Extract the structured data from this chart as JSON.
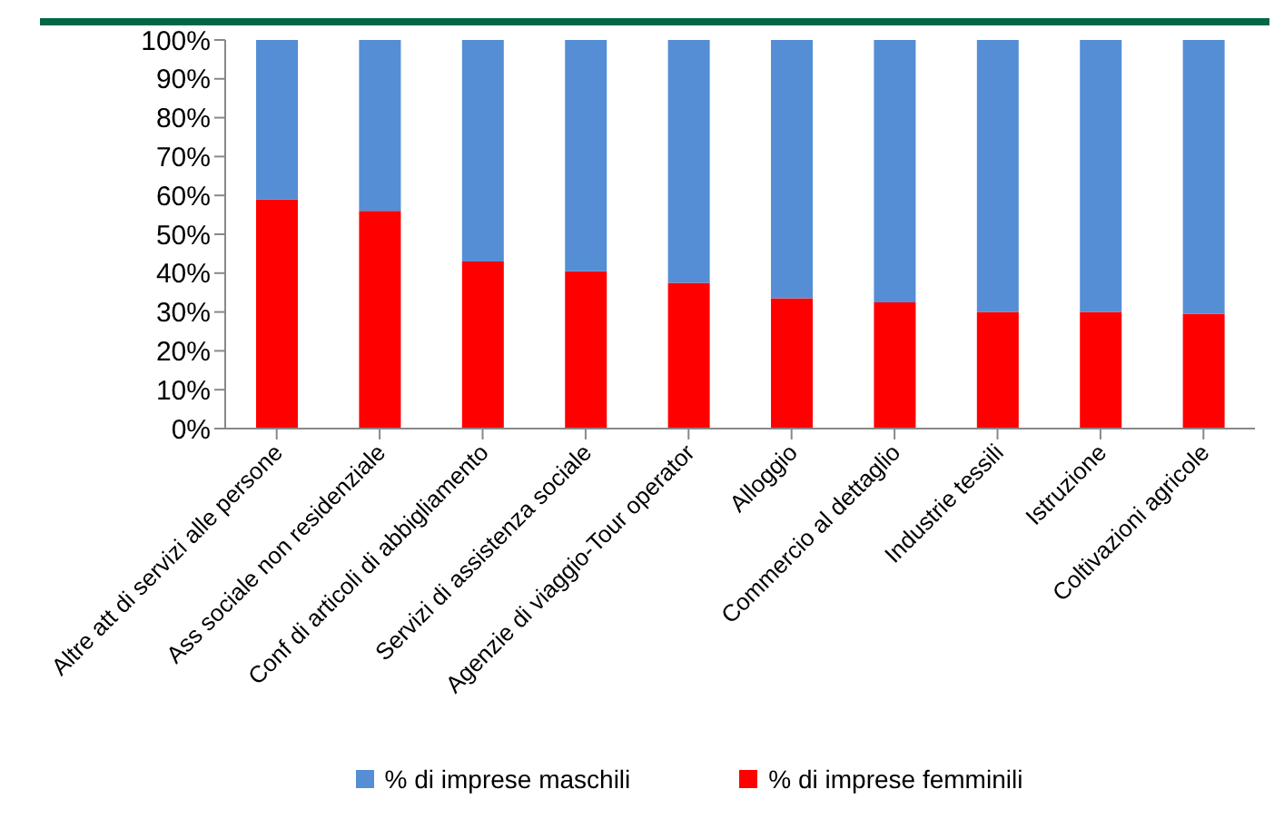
{
  "chart_data": {
    "type": "bar",
    "stacked": true,
    "categories": [
      "Altre att di servizi alle persone",
      "Ass sociale non residenziale",
      "Conf di articoli di abbigliamento",
      "Servizi di assistenza sociale",
      "Agenzie di viaggio-Tour operator",
      "Alloggio",
      "Commercio al dettaglio",
      "Industrie tessili",
      "Istruzione",
      "Coltivazioni agricole"
    ],
    "series": [
      {
        "name": "% di imprese femminili",
        "color": "#ff0000",
        "values": [
          59,
          56,
          43,
          40.5,
          37.5,
          33.5,
          32.5,
          30,
          30,
          29.5
        ]
      },
      {
        "name": "% di imprese maschili",
        "color": "#558ed5",
        "values": [
          41,
          44,
          57,
          59.5,
          62.5,
          66.5,
          67.5,
          70,
          70,
          70.5
        ]
      }
    ],
    "ylim": [
      0,
      100
    ],
    "yticks": [
      {
        "value": 0,
        "label": "0%"
      },
      {
        "value": 10,
        "label": "10%"
      },
      {
        "value": 20,
        "label": "20%"
      },
      {
        "value": 30,
        "label": "30%"
      },
      {
        "value": 40,
        "label": "40%"
      },
      {
        "value": 50,
        "label": "50%"
      },
      {
        "value": 60,
        "label": "60%"
      },
      {
        "value": 70,
        "label": "70%"
      },
      {
        "value": 80,
        "label": "80%"
      },
      {
        "value": 90,
        "label": "90%"
      },
      {
        "value": 100,
        "label": "100%"
      }
    ],
    "grid": false,
    "legend": "bottom"
  }
}
